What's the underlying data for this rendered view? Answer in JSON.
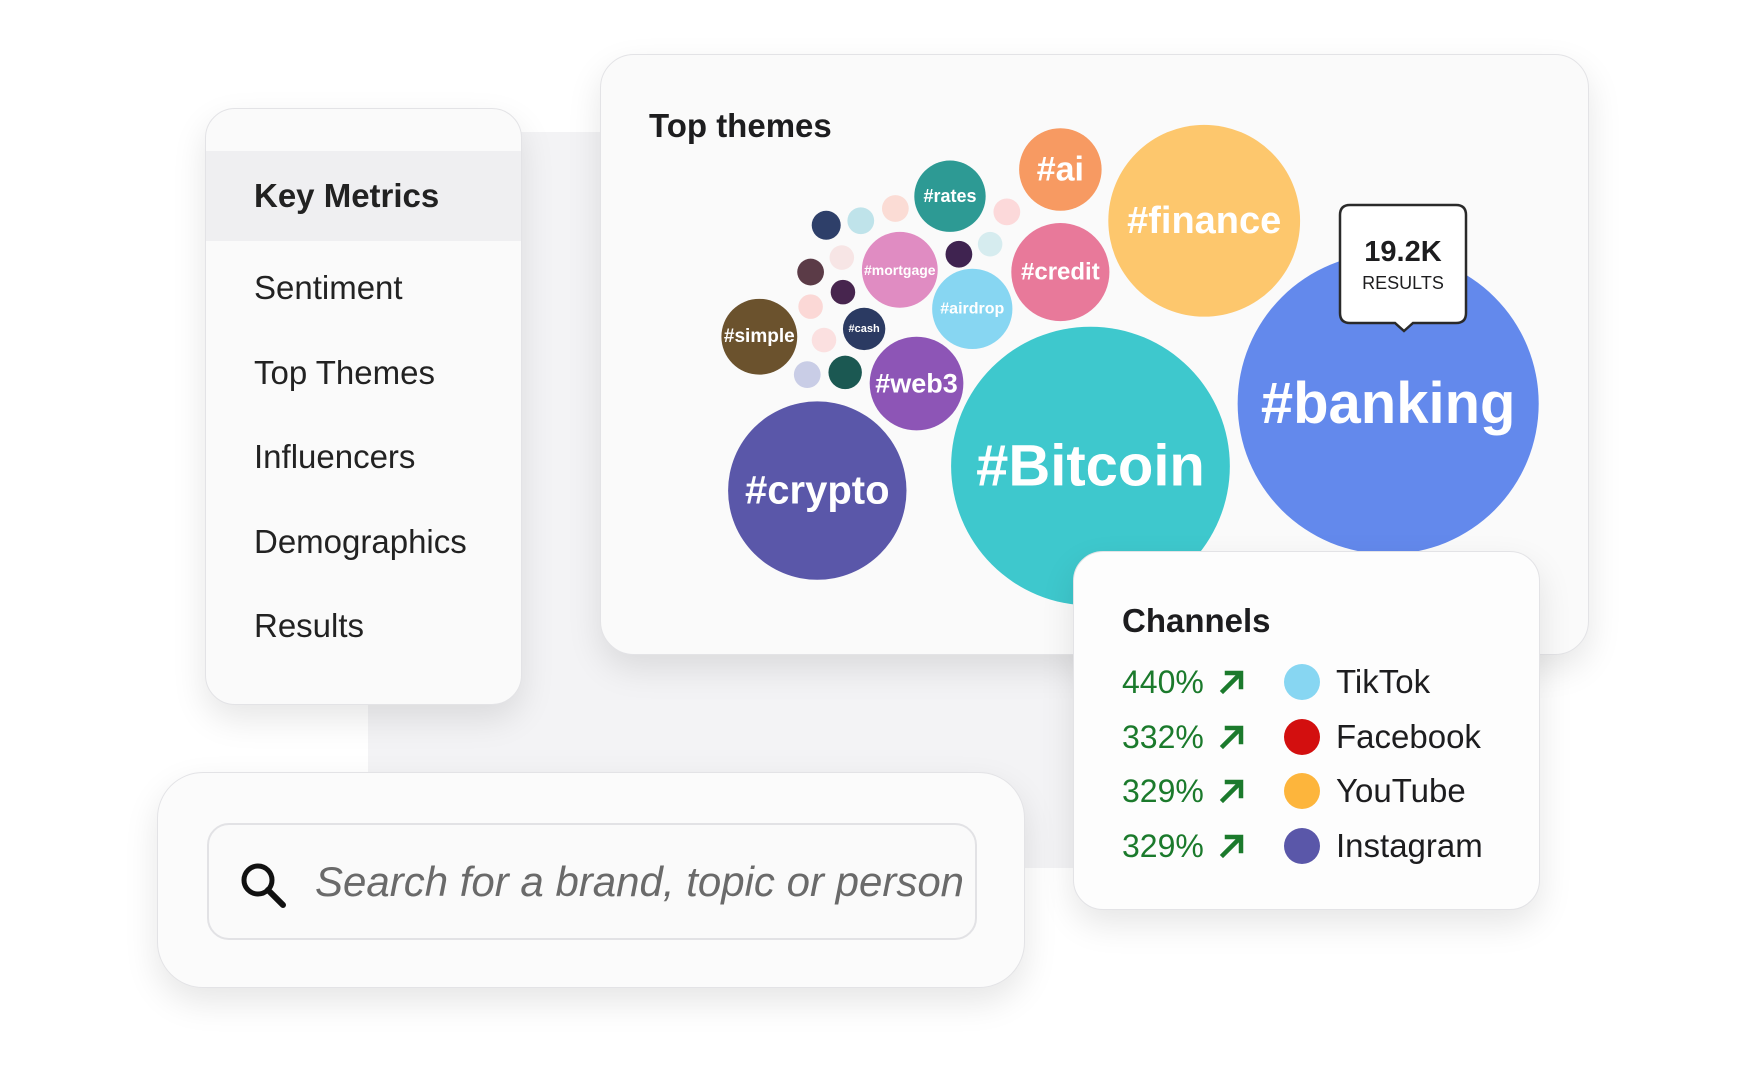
{
  "menu": {
    "items": [
      "Key Metrics",
      "Sentiment",
      "Top Themes",
      "Influencers",
      "Demographics",
      "Results"
    ]
  },
  "top_themes": {
    "title": "Top themes",
    "tags": [
      "#banking",
      "#Bitcoin",
      "#finance",
      "#crypto",
      "#credit",
      "#ai",
      "#web3",
      "#airdrop",
      "#mortgage",
      "#rates",
      "#simple",
      "#cash"
    ],
    "tooltip": {
      "value": "19.2K",
      "label": "RESULTS"
    }
  },
  "channels": {
    "title": "Channels",
    "rows": [
      {
        "change": "440%",
        "name": "TikTok",
        "color": "#87d6f2"
      },
      {
        "change": "332%",
        "name": "Facebook",
        "color": "#d30f0f"
      },
      {
        "change": "329%",
        "name": "YouTube",
        "color": "#fdb53c"
      },
      {
        "change": "329%",
        "name": "Instagram",
        "color": "#5a57a9"
      }
    ]
  },
  "search": {
    "placeholder": "Search for a brand, topic or person"
  }
}
